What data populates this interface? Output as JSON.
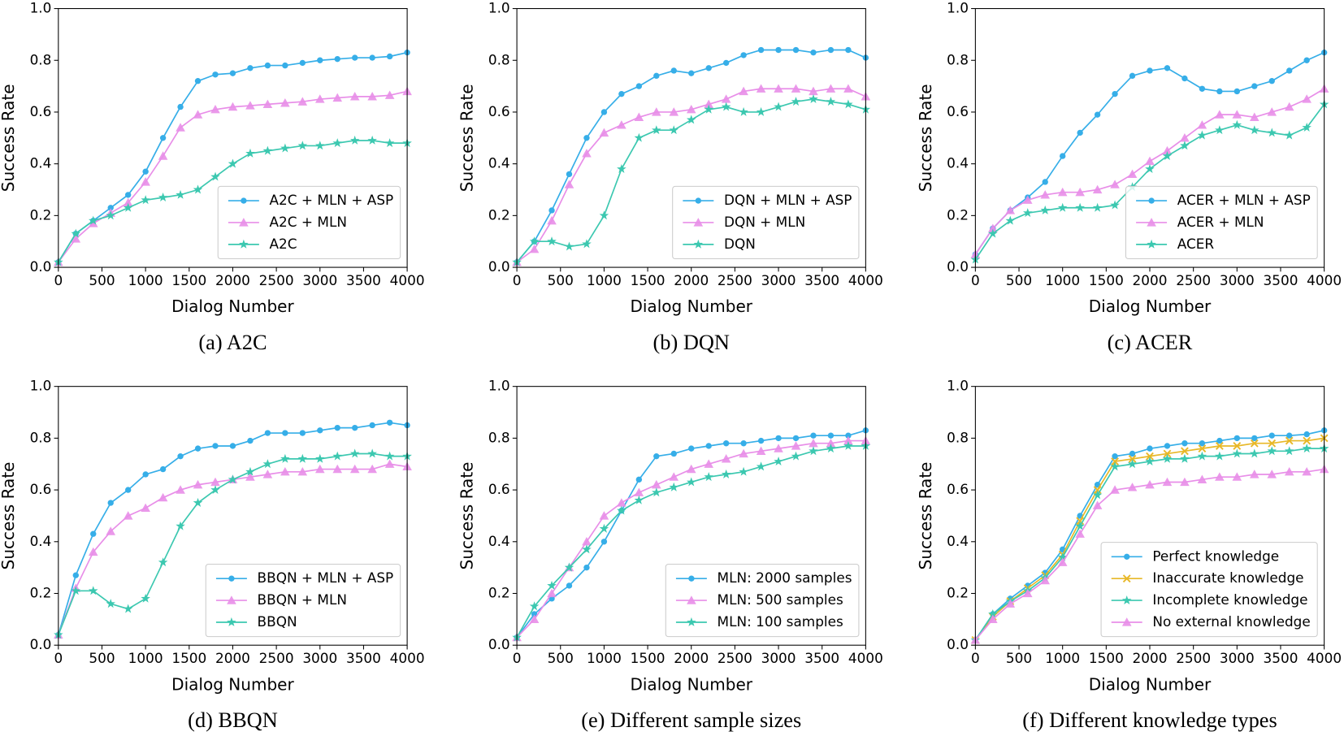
{
  "chart_data": [
    {
      "type": "line",
      "caption": "(a)  A2C",
      "xlabel": "Dialog Number",
      "ylabel": "Success Rate",
      "x": [
        0,
        200,
        400,
        600,
        800,
        1000,
        1200,
        1400,
        1600,
        1800,
        2000,
        2200,
        2400,
        2600,
        2800,
        3000,
        3200,
        3400,
        3600,
        3800,
        4000
      ],
      "xlim": [
        0,
        4000
      ],
      "xticks": [
        0,
        500,
        1000,
        1500,
        2000,
        2500,
        3000,
        3500,
        4000
      ],
      "ylim": [
        0,
        1
      ],
      "yticks": [
        {
          "value": 0,
          "label": "0.0"
        },
        0.2,
        0.4,
        0.6,
        0.8,
        {
          "value": 1,
          "label": "1.0"
        }
      ],
      "legend": "lower right",
      "series": [
        {
          "name": "A2C + MLN + ASP",
          "color": "#36aee8",
          "marker": "circle",
          "values": [
            0.02,
            0.13,
            0.18,
            0.23,
            0.28,
            0.37,
            0.5,
            0.62,
            0.72,
            0.745,
            0.75,
            0.77,
            0.78,
            0.78,
            0.79,
            0.8,
            0.805,
            0.81,
            0.81,
            0.815,
            0.83
          ]
        },
        {
          "name": "A2C + MLN",
          "color": "#e88ee8",
          "marker": "triangle",
          "values": [
            0.02,
            0.11,
            0.17,
            0.21,
            0.25,
            0.33,
            0.43,
            0.54,
            0.59,
            0.61,
            0.62,
            0.625,
            0.63,
            0.635,
            0.64,
            0.65,
            0.655,
            0.66,
            0.66,
            0.665,
            0.68
          ]
        },
        {
          "name": "A2C",
          "color": "#3cc8b0",
          "marker": "star",
          "values": [
            0.02,
            0.13,
            0.18,
            0.2,
            0.23,
            0.26,
            0.27,
            0.28,
            0.3,
            0.35,
            0.4,
            0.44,
            0.45,
            0.46,
            0.47,
            0.47,
            0.48,
            0.49,
            0.49,
            0.48,
            0.48
          ]
        }
      ]
    },
    {
      "type": "line",
      "caption": "(b)  DQN",
      "xlabel": "Dialog Number",
      "ylabel": "Success Rate",
      "x": [
        0,
        200,
        400,
        600,
        800,
        1000,
        1200,
        1400,
        1600,
        1800,
        2000,
        2200,
        2400,
        2600,
        2800,
        3000,
        3200,
        3400,
        3600,
        3800,
        4000
      ],
      "xlim": [
        0,
        4000
      ],
      "xticks": [
        0,
        500,
        1000,
        1500,
        2000,
        2500,
        3000,
        3500,
        4000
      ],
      "ylim": [
        0,
        1
      ],
      "yticks": [
        {
          "value": 0,
          "label": "0.0"
        },
        0.2,
        0.4,
        0.6,
        0.8,
        {
          "value": 1,
          "label": "1.0"
        }
      ],
      "legend": "lower right",
      "series": [
        {
          "name": "DQN + MLN + ASP",
          "color": "#36aee8",
          "marker": "circle",
          "values": [
            0.02,
            0.1,
            0.22,
            0.36,
            0.5,
            0.6,
            0.67,
            0.7,
            0.74,
            0.76,
            0.75,
            0.77,
            0.79,
            0.82,
            0.84,
            0.84,
            0.84,
            0.83,
            0.84,
            0.84,
            0.81
          ]
        },
        {
          "name": "DQN + MLN",
          "color": "#e88ee8",
          "marker": "triangle",
          "values": [
            0.02,
            0.07,
            0.18,
            0.32,
            0.44,
            0.52,
            0.55,
            0.58,
            0.6,
            0.6,
            0.61,
            0.63,
            0.65,
            0.68,
            0.69,
            0.69,
            0.69,
            0.68,
            0.69,
            0.69,
            0.66
          ]
        },
        {
          "name": "DQN",
          "color": "#3cc8b0",
          "marker": "star",
          "values": [
            0.02,
            0.1,
            0.1,
            0.08,
            0.09,
            0.2,
            0.38,
            0.5,
            0.53,
            0.53,
            0.57,
            0.61,
            0.62,
            0.6,
            0.6,
            0.62,
            0.64,
            0.65,
            0.64,
            0.63,
            0.61
          ]
        }
      ]
    },
    {
      "type": "line",
      "caption": "(c)  ACER",
      "xlabel": "Dialog Number",
      "ylabel": "Success Rate",
      "x": [
        0,
        200,
        400,
        600,
        800,
        1000,
        1200,
        1400,
        1600,
        1800,
        2000,
        2200,
        2400,
        2600,
        2800,
        3000,
        3200,
        3400,
        3600,
        3800,
        4000
      ],
      "xlim": [
        0,
        4000
      ],
      "xticks": [
        0,
        500,
        1000,
        1500,
        2000,
        2500,
        3000,
        3500,
        4000
      ],
      "ylim": [
        0,
        1
      ],
      "yticks": [
        {
          "value": 0,
          "label": "0.0"
        },
        0.2,
        0.4,
        0.6,
        0.8,
        {
          "value": 1,
          "label": "1.0"
        }
      ],
      "legend": "lower right",
      "series": [
        {
          "name": "ACER + MLN + ASP",
          "color": "#36aee8",
          "marker": "circle",
          "values": [
            0.05,
            0.15,
            0.22,
            0.27,
            0.33,
            0.43,
            0.52,
            0.59,
            0.67,
            0.74,
            0.76,
            0.77,
            0.73,
            0.69,
            0.68,
            0.68,
            0.7,
            0.72,
            0.76,
            0.8,
            0.83
          ]
        },
        {
          "name": "ACER + MLN",
          "color": "#e88ee8",
          "marker": "triangle",
          "values": [
            0.05,
            0.15,
            0.22,
            0.26,
            0.28,
            0.29,
            0.29,
            0.3,
            0.32,
            0.36,
            0.41,
            0.45,
            0.5,
            0.55,
            0.59,
            0.59,
            0.58,
            0.6,
            0.62,
            0.65,
            0.69
          ]
        },
        {
          "name": "ACER",
          "color": "#3cc8b0",
          "marker": "star",
          "values": [
            0.03,
            0.13,
            0.18,
            0.21,
            0.22,
            0.23,
            0.23,
            0.23,
            0.24,
            0.31,
            0.38,
            0.43,
            0.47,
            0.51,
            0.53,
            0.55,
            0.53,
            0.52,
            0.51,
            0.54,
            0.63
          ]
        }
      ]
    },
    {
      "type": "line",
      "caption": "(d)  BBQN",
      "xlabel": "Dialog Number",
      "ylabel": "Success Rate",
      "x": [
        0,
        200,
        400,
        600,
        800,
        1000,
        1200,
        1400,
        1600,
        1800,
        2000,
        2200,
        2400,
        2600,
        2800,
        3000,
        3200,
        3400,
        3600,
        3800,
        4000
      ],
      "xlim": [
        0,
        4000
      ],
      "xticks": [
        0,
        500,
        1000,
        1500,
        2000,
        2500,
        3000,
        3500,
        4000
      ],
      "ylim": [
        0,
        1
      ],
      "yticks": [
        {
          "value": 0,
          "label": "0.0"
        },
        0.2,
        0.4,
        0.6,
        0.8,
        {
          "value": 1,
          "label": "1.0"
        }
      ],
      "legend": "lower right",
      "series": [
        {
          "name": "BBQN + MLN + ASP",
          "color": "#36aee8",
          "marker": "circle",
          "values": [
            0.04,
            0.27,
            0.43,
            0.55,
            0.6,
            0.66,
            0.68,
            0.73,
            0.76,
            0.77,
            0.77,
            0.79,
            0.82,
            0.82,
            0.82,
            0.83,
            0.84,
            0.84,
            0.85,
            0.86,
            0.85
          ]
        },
        {
          "name": "BBQN + MLN",
          "color": "#e88ee8",
          "marker": "triangle",
          "values": [
            0.04,
            0.22,
            0.36,
            0.44,
            0.5,
            0.53,
            0.57,
            0.6,
            0.62,
            0.63,
            0.64,
            0.65,
            0.66,
            0.67,
            0.67,
            0.68,
            0.68,
            0.68,
            0.68,
            0.7,
            0.69
          ]
        },
        {
          "name": "BBQN",
          "color": "#3cc8b0",
          "marker": "star",
          "values": [
            0.04,
            0.21,
            0.21,
            0.16,
            0.14,
            0.18,
            0.32,
            0.46,
            0.55,
            0.6,
            0.64,
            0.67,
            0.7,
            0.72,
            0.72,
            0.72,
            0.73,
            0.74,
            0.74,
            0.73,
            0.73
          ]
        }
      ]
    },
    {
      "type": "line",
      "caption": "(e)  Different sample sizes",
      "xlabel": "Dialog Number",
      "ylabel": "Success Rate",
      "x": [
        0,
        200,
        400,
        600,
        800,
        1000,
        1200,
        1400,
        1600,
        1800,
        2000,
        2200,
        2400,
        2600,
        2800,
        3000,
        3200,
        3400,
        3600,
        3800,
        4000
      ],
      "xlim": [
        0,
        4000
      ],
      "xticks": [
        0,
        500,
        1000,
        1500,
        2000,
        2500,
        3000,
        3500,
        4000
      ],
      "ylim": [
        0,
        1
      ],
      "yticks": [
        {
          "value": 0,
          "label": "0.0"
        },
        0.2,
        0.4,
        0.6,
        0.8,
        {
          "value": 1,
          "label": "1.0"
        }
      ],
      "legend": "lower right",
      "series": [
        {
          "name": "MLN: 2000 samples",
          "color": "#36aee8",
          "marker": "circle",
          "values": [
            0.03,
            0.12,
            0.18,
            0.23,
            0.3,
            0.4,
            0.52,
            0.64,
            0.73,
            0.74,
            0.76,
            0.77,
            0.78,
            0.78,
            0.79,
            0.8,
            0.8,
            0.81,
            0.81,
            0.81,
            0.83
          ]
        },
        {
          "name": "MLN: 500 samples",
          "color": "#e88ee8",
          "marker": "triangle",
          "values": [
            0.03,
            0.1,
            0.2,
            0.3,
            0.4,
            0.5,
            0.55,
            0.59,
            0.62,
            0.65,
            0.68,
            0.7,
            0.72,
            0.74,
            0.75,
            0.76,
            0.77,
            0.78,
            0.78,
            0.79,
            0.79
          ]
        },
        {
          "name": "MLN: 100 samples",
          "color": "#3cc8b0",
          "marker": "star",
          "values": [
            0.03,
            0.15,
            0.23,
            0.3,
            0.37,
            0.45,
            0.52,
            0.56,
            0.59,
            0.61,
            0.63,
            0.65,
            0.66,
            0.67,
            0.69,
            0.71,
            0.73,
            0.75,
            0.76,
            0.77,
            0.77
          ]
        }
      ]
    },
    {
      "type": "line",
      "caption": "(f)  Different knowledge types",
      "xlabel": "Dialog Number",
      "ylabel": "Success Rate",
      "x": [
        0,
        200,
        400,
        600,
        800,
        1000,
        1200,
        1400,
        1600,
        1800,
        2000,
        2200,
        2400,
        2600,
        2800,
        3000,
        3200,
        3400,
        3600,
        3800,
        4000
      ],
      "xlim": [
        0,
        4000
      ],
      "xticks": [
        0,
        500,
        1000,
        1500,
        2000,
        2500,
        3000,
        3500,
        4000
      ],
      "ylim": [
        0,
        1
      ],
      "yticks": [
        {
          "value": 0,
          "label": "0.0"
        },
        0.2,
        0.4,
        0.6,
        0.8,
        {
          "value": 1,
          "label": "1.0"
        }
      ],
      "legend": "lower right",
      "series": [
        {
          "name": "Perfect knowledge",
          "color": "#36aee8",
          "marker": "circle",
          "values": [
            0.02,
            0.12,
            0.18,
            0.23,
            0.28,
            0.37,
            0.5,
            0.62,
            0.73,
            0.74,
            0.76,
            0.77,
            0.78,
            0.78,
            0.79,
            0.8,
            0.8,
            0.81,
            0.81,
            0.815,
            0.83
          ]
        },
        {
          "name": "Inaccurate knowledge",
          "color": "#e8b828",
          "marker": "x",
          "values": [
            0.02,
            0.11,
            0.17,
            0.22,
            0.27,
            0.35,
            0.48,
            0.6,
            0.71,
            0.72,
            0.73,
            0.74,
            0.75,
            0.76,
            0.77,
            0.77,
            0.78,
            0.78,
            0.79,
            0.79,
            0.8
          ]
        },
        {
          "name": "Incomplete knowledge",
          "color": "#3cc8b0",
          "marker": "star",
          "values": [
            0.02,
            0.12,
            0.17,
            0.21,
            0.26,
            0.34,
            0.46,
            0.58,
            0.69,
            0.7,
            0.71,
            0.72,
            0.72,
            0.73,
            0.73,
            0.74,
            0.74,
            0.75,
            0.75,
            0.76,
            0.76
          ]
        },
        {
          "name": "No external knowledge",
          "color": "#e88ee8",
          "marker": "triangle",
          "values": [
            0.02,
            0.1,
            0.16,
            0.2,
            0.25,
            0.32,
            0.43,
            0.54,
            0.6,
            0.61,
            0.62,
            0.63,
            0.63,
            0.64,
            0.65,
            0.65,
            0.66,
            0.66,
            0.67,
            0.67,
            0.68
          ]
        }
      ]
    }
  ]
}
